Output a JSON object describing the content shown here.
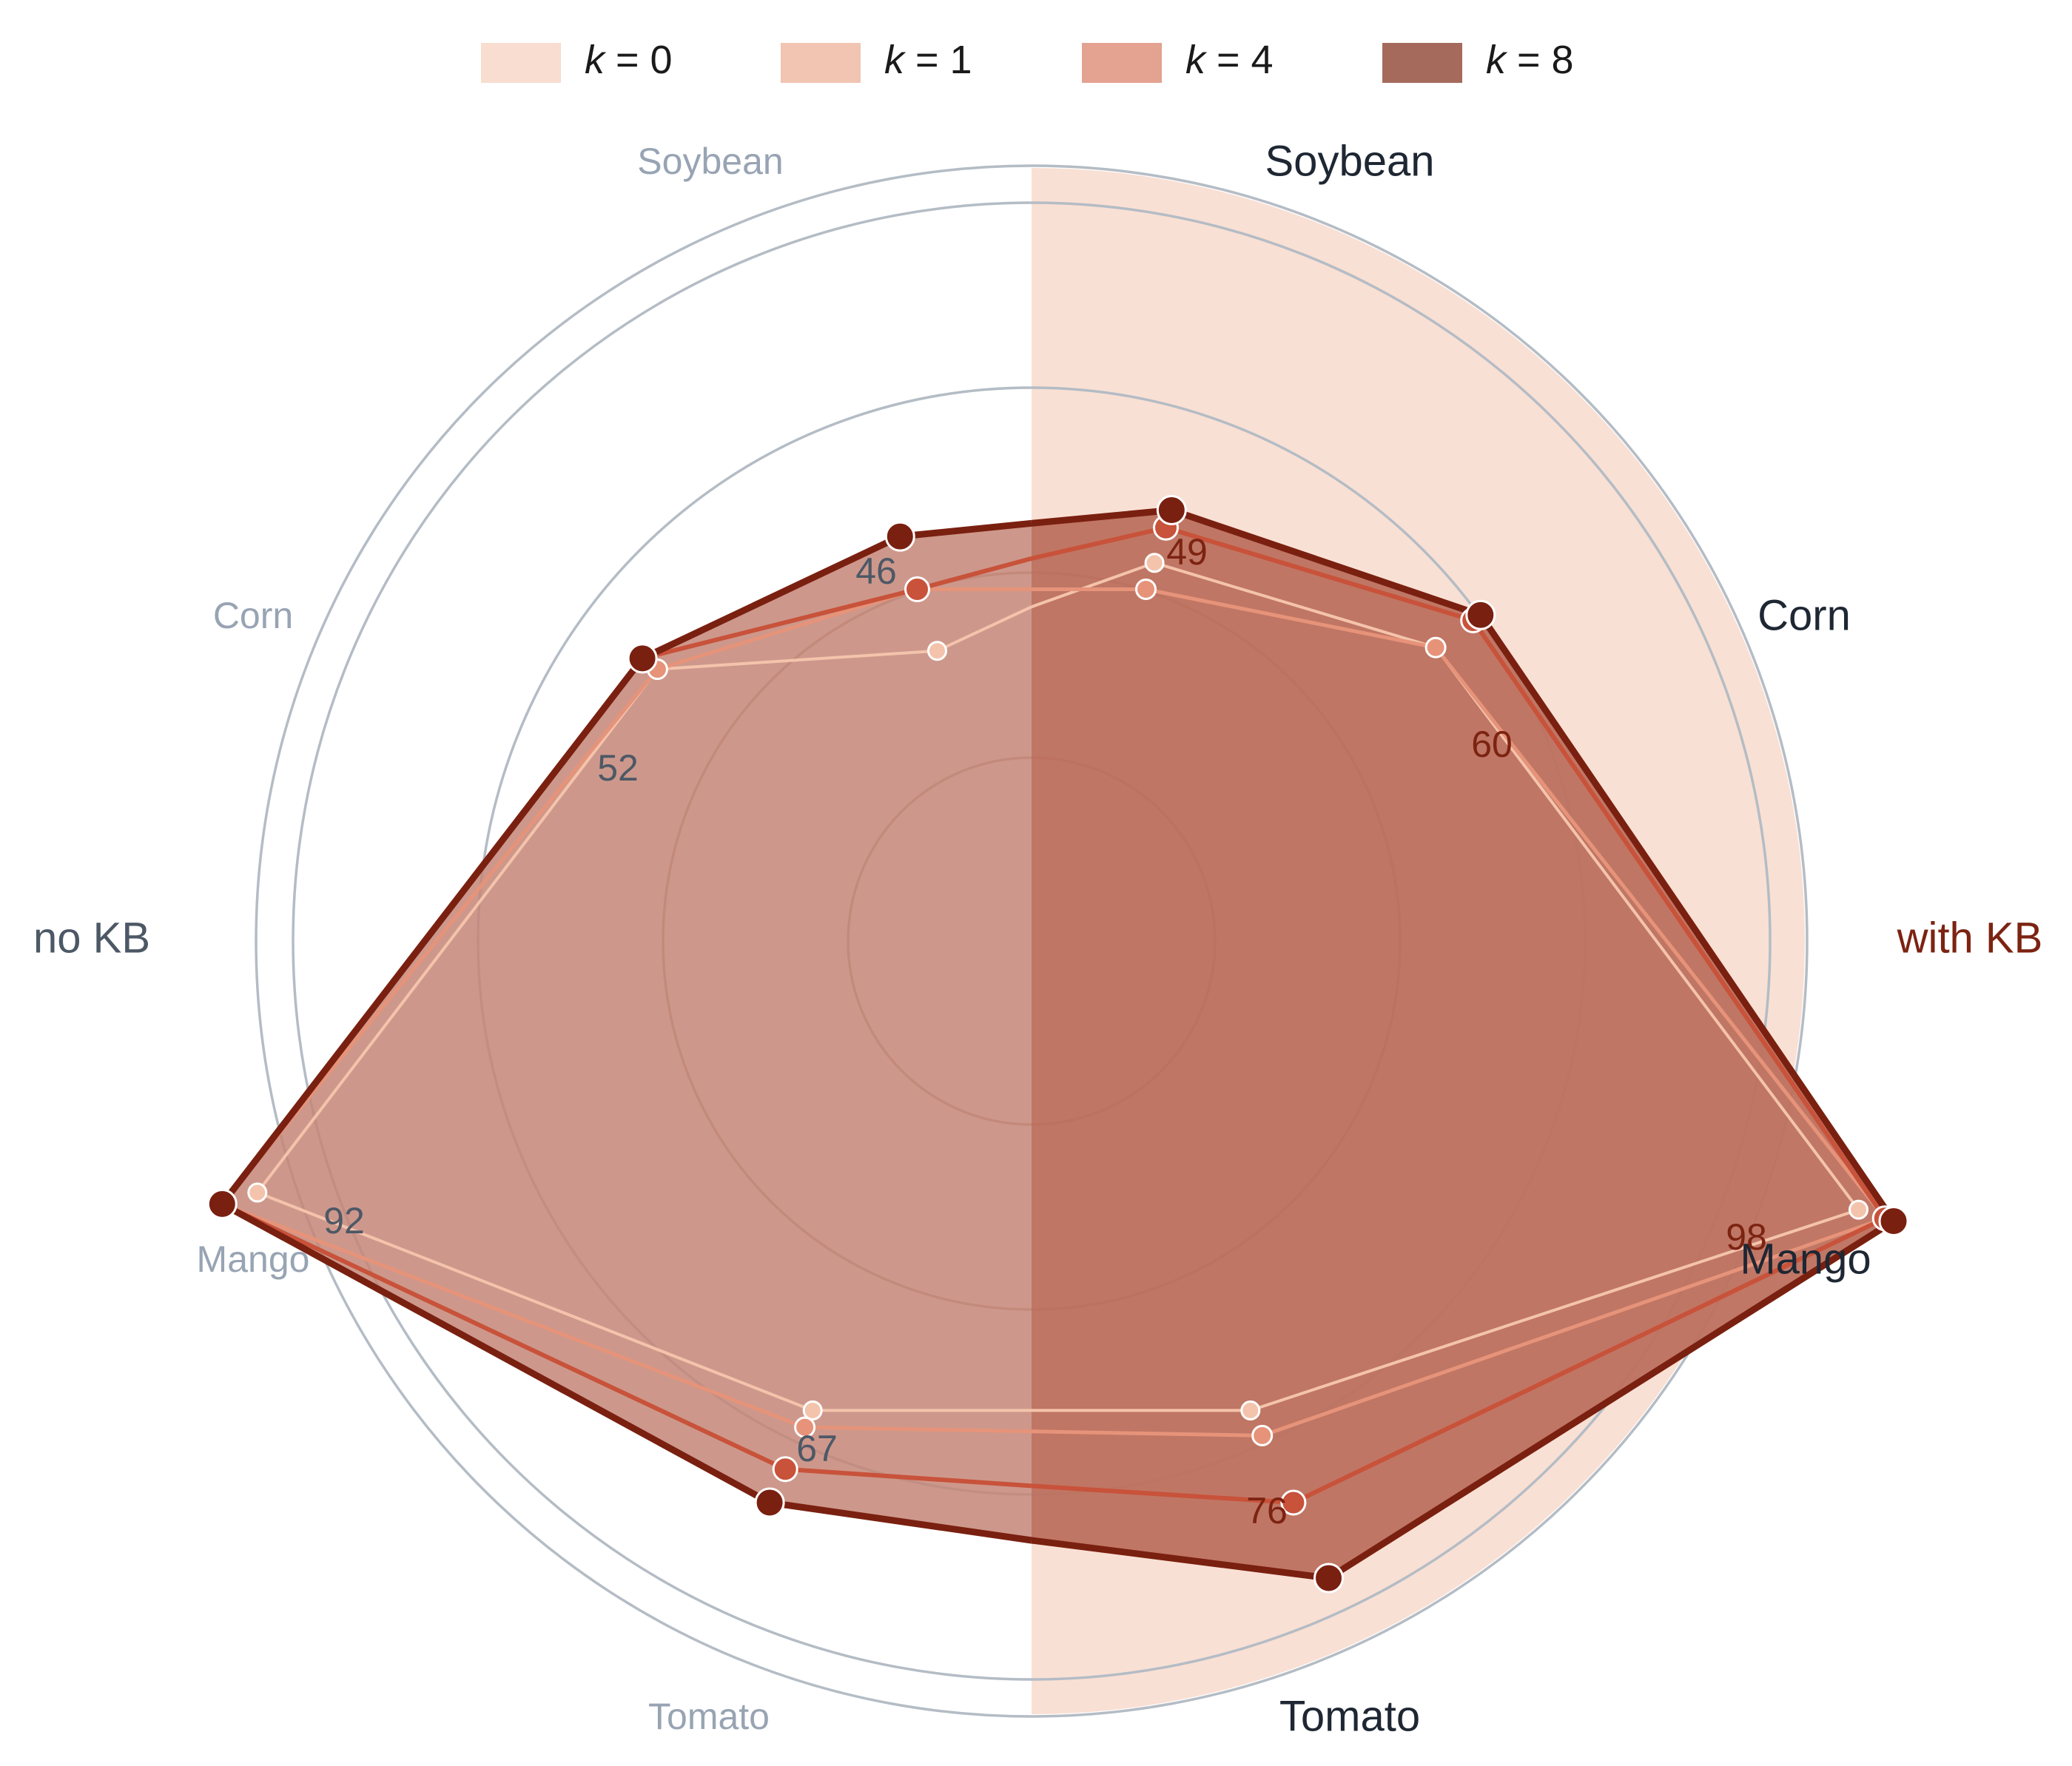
{
  "chart_data": {
    "type": "radar",
    "layout": "two half-radars sharing a center: left half = no KB, right half = with KB (shaded background)",
    "axes": [
      "Soybean",
      "Corn",
      "Mango",
      "Tomato"
    ],
    "halves": [
      {
        "key": "no_kb",
        "label": "no KB",
        "side": "left"
      },
      {
        "key": "with_kb",
        "label": "with KB",
        "side": "right"
      }
    ],
    "rlim": [
      0,
      100
    ],
    "series": [
      {
        "name": "k = 0",
        "k": "0",
        "no_kb": {
          "Soybean": 33,
          "Corn": 50,
          "Mango": 88,
          "Tomato": 56
        },
        "with_kb": {
          "Soybean": 43,
          "Corn": 54,
          "Mango": 94,
          "Tomato": 56
        }
      },
      {
        "name": "k = 1",
        "k": "1",
        "no_kb": {
          "Soybean": 40,
          "Corn": 50,
          "Mango": 92,
          "Tomato": 58
        },
        "with_kb": {
          "Soybean": 40,
          "Corn": 54,
          "Mango": 97,
          "Tomato": 59
        }
      },
      {
        "name": "k = 4",
        "k": "4",
        "no_kb": {
          "Soybean": 40,
          "Corn": 52,
          "Mango": 92,
          "Tomato": 63
        },
        "with_kb": {
          "Soybean": 47,
          "Corn": 59,
          "Mango": 97,
          "Tomato": 67
        }
      },
      {
        "name": "k = 8",
        "k": "8",
        "no_kb": {
          "Soybean": 46,
          "Corn": 52,
          "Mango": 92,
          "Tomato": 67
        },
        "with_kb": {
          "Soybean": 49,
          "Corn": 60,
          "Mango": 98,
          "Tomato": 76
        }
      }
    ],
    "annotations": {
      "no_kb": {
        "Soybean": "46",
        "Corn": "52",
        "Mango": "92",
        "Tomato": "67"
      },
      "with_kb": {
        "Soybean": "49",
        "Corn": "60",
        "Mango": "98",
        "Tomato": "76"
      }
    },
    "grid": true,
    "legend": {
      "placement": "top-center",
      "prefix": "k",
      "entries": [
        "0",
        "1",
        "4",
        "8"
      ]
    },
    "colors": {
      "series": [
        "#f4c3ab",
        "#e6937a",
        "#c8523a",
        "#7a2010"
      ],
      "legend_patch": [
        "#f8ddd0",
        "#f2c4b2",
        "#e4a291",
        "#a66a5c"
      ],
      "fill_no_kb": "#c48677",
      "fill_with_kb": "#bd705e",
      "with_kb_background": "#f9e0d4",
      "grid": "#b4bcc5",
      "grid_inner": "#a0756a",
      "label_no_kb_axis": "#98a4b3",
      "label_with_kb_axis": "#1e2733",
      "label_no_kb_half": "#4d5866",
      "label_with_kb_half": "#7c2312",
      "annotation_no_kb": "#4d5866",
      "annotation_with_kb": "#7c2312"
    }
  }
}
